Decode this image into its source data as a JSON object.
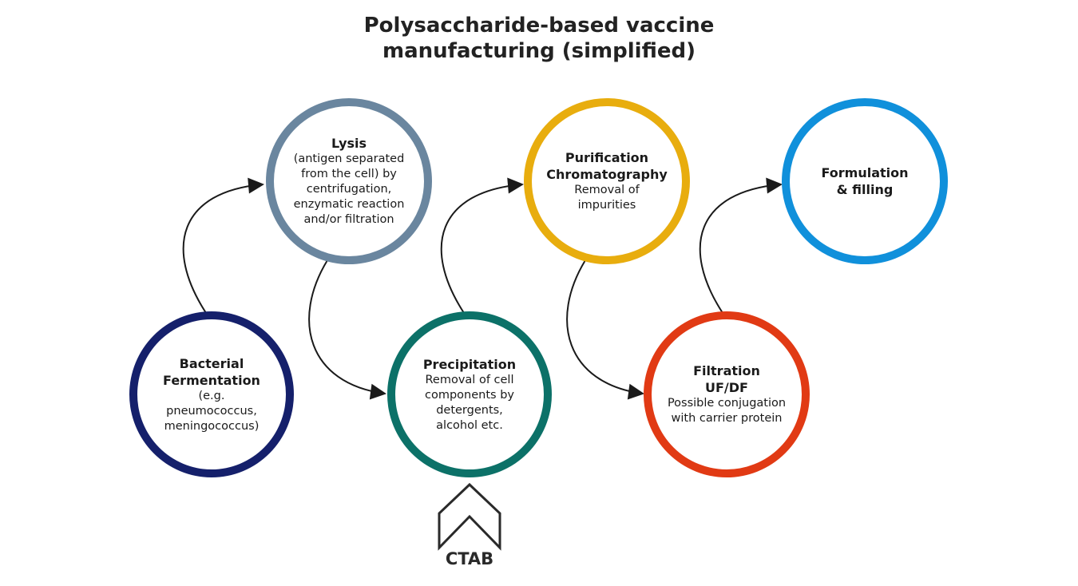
{
  "title": {
    "line1": "Polysaccharide-based vaccine",
    "line2": "manufacturing (simplified)"
  },
  "steps": [
    {
      "id": "fermentation",
      "title": "Bacterial\nFermentation",
      "desc": "(e.g. pneumococcus,\nmeningococcus)",
      "color": "#15206b"
    },
    {
      "id": "lysis",
      "title": "Lysis",
      "desc": "(antigen separated\nfrom the cell) by\ncentrifugation,\nenzymatic reaction\nand/or filtration",
      "color": "#6a869f"
    },
    {
      "id": "precipitation",
      "title": "Precipitation",
      "desc": "Removal of cell\ncomponents by\ndetergents,\nalcohol etc.",
      "color": "#0c7168"
    },
    {
      "id": "purification",
      "title": "Purification\nChromatography",
      "desc": "Removal of\nimpurities",
      "color": "#e8ad0e"
    },
    {
      "id": "filtration",
      "title": "Filtration\nUF/DF",
      "desc": "Possible conjugation\nwith carrier protein",
      "color": "#e13a14"
    },
    {
      "id": "formulation",
      "title": "Formulation\n& filling",
      "desc": "",
      "color": "#1090db"
    }
  ],
  "input": {
    "label": "CTAB",
    "icon": "chevron-up-icon"
  },
  "colors": {
    "connector": "#1a1a1a",
    "text": "#1a1a1a"
  }
}
